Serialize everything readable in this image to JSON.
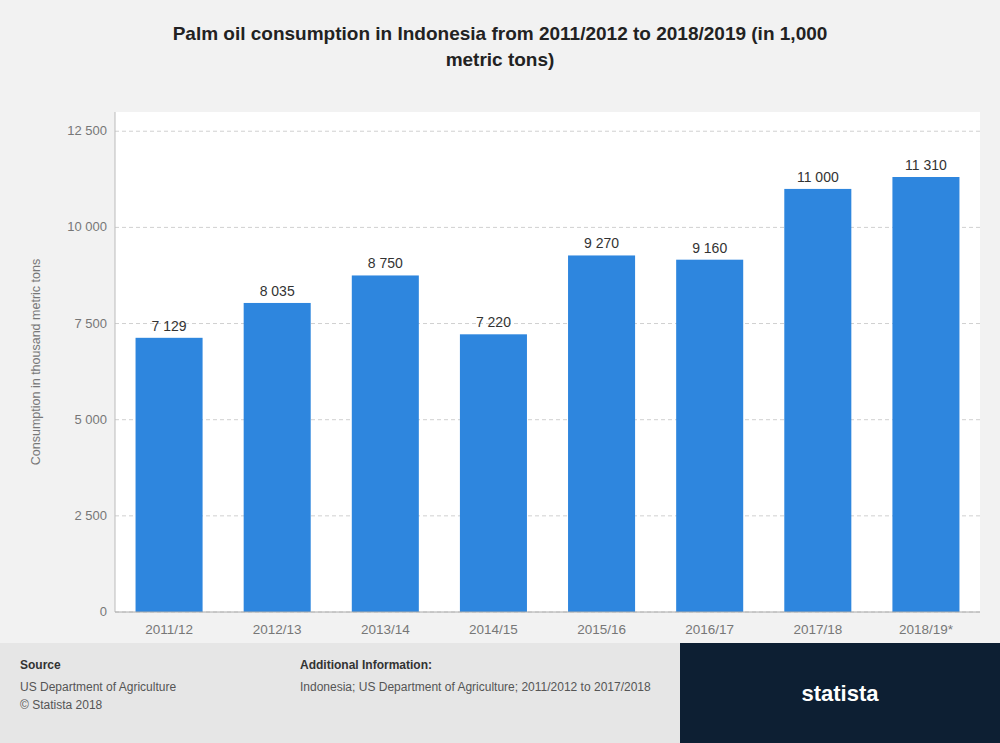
{
  "chart_data": {
    "type": "bar",
    "title": "Palm oil consumption in Indonesia from 2011/2012 to 2018/2019 (in 1,000\nmetric tons)",
    "categories": [
      "2011/12",
      "2012/13",
      "2013/14",
      "2014/15",
      "2015/16",
      "2016/17",
      "2017/18",
      "2018/19*"
    ],
    "values": [
      7129,
      8035,
      8750,
      7220,
      9270,
      9160,
      11000,
      11310
    ],
    "value_labels": [
      "7 129",
      "8 035",
      "8 750",
      "7 220",
      "9 270",
      "9 160",
      "11 000",
      "11 310"
    ],
    "data_labels": true,
    "color": "#2e86de",
    "ylabel": "Consumption in thousand metric tons",
    "ylim": [
      0,
      13000
    ],
    "yticks": [
      0,
      {
        "value": 2500,
        "label": "2 500"
      },
      {
        "value": 5000,
        "label": "5 000"
      },
      {
        "value": 7500,
        "label": "7 500"
      },
      {
        "value": 10000,
        "label": "10 000"
      },
      {
        "value": 12500,
        "label": "12 500"
      }
    ],
    "grid": true,
    "annotations": [
      "Source",
      "US Department of Agriculture",
      "© Statista 2018",
      "Additional Information:",
      "Indonesia; US Department of Agriculture; 2011/2012 to 2017/2018",
      "statista"
    ]
  }
}
